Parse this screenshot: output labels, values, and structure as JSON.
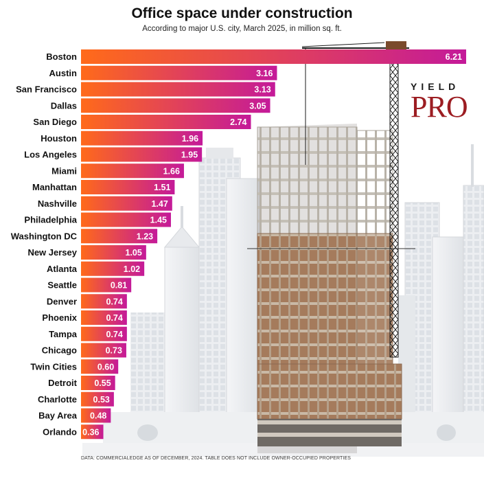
{
  "header": {
    "title": "Office space under construction",
    "subtitle": "According to major U.S. city, March 2025, in million sq. ft."
  },
  "logo": {
    "top": "YIELD",
    "main": "PRO"
  },
  "footnote": "DATA: COMMERCIALEDGE AS OF DECEMBER, 2024. TABLE DOES NOT INCLUDE OWNER-OCCUPIED PROPERTIES",
  "colors": {
    "bar_gradient_start": "#ff6a1a",
    "bar_gradient_end": "#c41a99",
    "brand_red": "#9c1d22"
  },
  "chart_data": {
    "type": "bar",
    "orientation": "horizontal",
    "title": "Office space under construction",
    "subtitle": "According to major U.S. city, March 2025, in million sq. ft.",
    "unit": "million sq. ft.",
    "xlim": [
      0,
      6.21
    ],
    "grid": false,
    "categories": [
      "Boston",
      "Austin",
      "San Francisco",
      "Dallas",
      "San Diego",
      "Houston",
      "Los Angeles",
      "Miami",
      "Manhattan",
      "Nashville",
      "Philadelphia",
      "Washington DC",
      "New Jersey",
      "Atlanta",
      "Seattle",
      "Denver",
      "Phoenix",
      "Tampa",
      "Chicago",
      "Twin Cities",
      "Detroit",
      "Charlotte",
      "Bay Area",
      "Orlando"
    ],
    "values": [
      6.21,
      3.16,
      3.13,
      3.05,
      2.74,
      1.96,
      1.95,
      1.66,
      1.51,
      1.47,
      1.45,
      1.23,
      1.05,
      1.02,
      0.81,
      0.74,
      0.74,
      0.74,
      0.73,
      0.6,
      0.55,
      0.53,
      0.48,
      0.36
    ],
    "value_labels": [
      "6.21",
      "3.16",
      "3.13",
      "3.05",
      "2.74",
      "1.96",
      "1.95",
      "1.66",
      "1.51",
      "1.47",
      "1.45",
      "1.23",
      "1.05",
      "1.02",
      "0.81",
      "0.74",
      "0.74",
      "0.74",
      "0.73",
      "0.60",
      "0.55",
      "0.53",
      "0.48",
      "0.36"
    ]
  }
}
